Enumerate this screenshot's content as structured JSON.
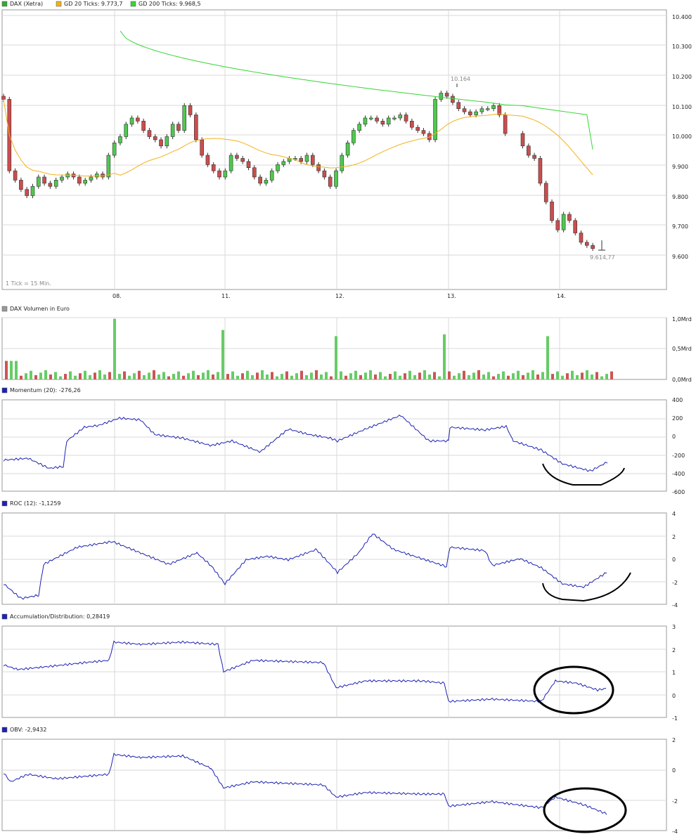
{
  "colors": {
    "up": "#4ec94e",
    "down": "#cc4d4d",
    "sma20": "#f2b21b",
    "sma200": "#35d635",
    "indicator": "#1d22b3",
    "vol_up": "#66cc66",
    "vol_down": "#cc5555",
    "annotation": "#000000"
  },
  "x_axis": {
    "labels": [
      "08.",
      "11.",
      "12.",
      "13.",
      "14."
    ]
  },
  "price_panel": {
    "legend": [
      {
        "label": "DAX (Xetra)",
        "color": "#33aa33"
      },
      {
        "label": "GD 20 Ticks: 9.773,7",
        "color": "#f2b21b"
      },
      {
        "label": "GD 200 Ticks: 9.968,5",
        "color": "#35d635"
      }
    ],
    "tick_note": "1 Tick = 15 Min.",
    "y_ticks": [
      "10.400",
      "10.300",
      "10.200",
      "10.100",
      "10.000",
      "9.900",
      "9.800",
      "9.700",
      "9.600"
    ],
    "annotation_high": "10.164",
    "annotation_low": "9.614,77"
  },
  "volume_panel": {
    "legend": "DAX Volumen in Euro",
    "y_ticks": [
      "1,0Mrd",
      "0,5Mrd",
      "0,0Mrd"
    ]
  },
  "momentum_panel": {
    "legend": "Momentum (20): -276,26",
    "y_ticks": [
      "400",
      "200",
      "0",
      "-200",
      "-400",
      "-600"
    ]
  },
  "roc_panel": {
    "legend": "ROC (12): -1,1259",
    "y_ticks": [
      "4",
      "2",
      "0",
      "-2",
      "-4"
    ]
  },
  "ad_panel": {
    "legend": "Accumulation/Distribution: 0,28419",
    "y_ticks": [
      "3",
      "2",
      "1",
      "0",
      "-1"
    ]
  },
  "obv_panel": {
    "legend": "OBV: -2,9432",
    "y_ticks": [
      "2",
      "0",
      "-2",
      "-4"
    ]
  },
  "chart_data": {
    "type": "candlestick",
    "x_labels": [
      "08.",
      "11.",
      "12.",
      "13.",
      "14."
    ],
    "price": {
      "ylim": [
        9500,
        10400
      ],
      "note": "approximate closes, 15-min ticks",
      "closes": [
        10130,
        9900,
        9870,
        9840,
        9820,
        9850,
        9880,
        9860,
        9850,
        9870,
        9880,
        9890,
        9880,
        9860,
        9870,
        9880,
        9890,
        9880,
        9950,
        9990,
        10010,
        10050,
        10070,
        10060,
        10030,
        10010,
        10000,
        9980,
        10010,
        10050,
        10030,
        10110,
        10080,
        10000,
        9950,
        9920,
        9900,
        9880,
        9900,
        9950,
        9940,
        9930,
        9910,
        9880,
        9860,
        9870,
        9900,
        9920,
        9930,
        9940,
        9940,
        9930,
        9950,
        9920,
        9900,
        9880,
        9850,
        9900,
        9950,
        9990,
        10030,
        10050,
        10070,
        10070,
        10060,
        10050,
        10070,
        10070,
        10080,
        10060,
        10040,
        10030,
        10020,
        10000,
        10130,
        10150,
        10140,
        10120,
        10100,
        10090,
        10080,
        10090,
        10100,
        10100,
        10110,
        10080,
        10020,
        9980,
        9950,
        9940,
        9860,
        9800,
        9740,
        9710,
        9760,
        9740,
        9700,
        9670,
        9660,
        9650
      ],
      "high_annotation": 10164,
      "low_annotation": 9614.77
    },
    "sma20": {
      "last": 9773.7
    },
    "sma200": {
      "last": 9968.5
    },
    "volume": {
      "ylim": [
        0,
        1.0
      ],
      "unit": "Mrd",
      "spikes": [
        0.98,
        0.8,
        0.7,
        0.73,
        0.7
      ]
    },
    "momentum": {
      "period": 20,
      "last": -276.26,
      "ylim": [
        -600,
        400
      ]
    },
    "roc": {
      "period": 12,
      "last": -1.1259,
      "ylim": [
        -4,
        4
      ]
    },
    "accumulation_distribution": {
      "last": 0.28419,
      "ylim": [
        -1,
        3
      ]
    },
    "obv": {
      "last": -2.9432,
      "ylim": [
        -4,
        2
      ]
    }
  }
}
